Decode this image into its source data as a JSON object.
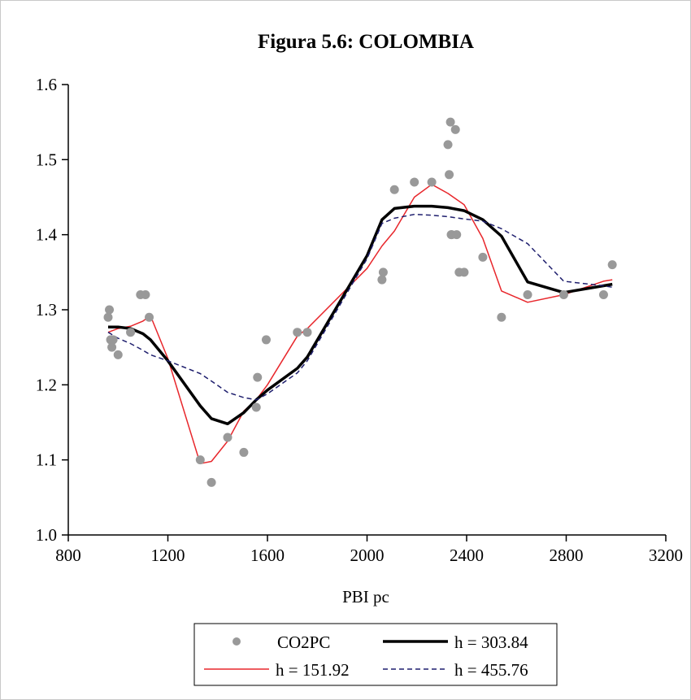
{
  "chart_data": {
    "type": "scatter",
    "title": "Figura 5.6: COLOMBIA",
    "xlabel": "PBI pc",
    "ylabel": "",
    "xlim": [
      800,
      3200
    ],
    "ylim": [
      1.0,
      1.6
    ],
    "xticks": [
      "800",
      "1200",
      "1600",
      "2000",
      "2400",
      "2800",
      "3200"
    ],
    "yticks": [
      "1.0",
      "1.1",
      "1.2",
      "1.3",
      "1.4",
      "1.5",
      "1.6"
    ],
    "grid": false,
    "legend_position": "bottom",
    "colors": {
      "points": "#999999",
      "h1": "#e8262b",
      "h2": "#000000",
      "h3": "#1f1f6e"
    },
    "points": {
      "name": "CO2PC",
      "x": [
        960,
        965,
        970,
        975,
        980,
        1000,
        1050,
        1090,
        1110,
        1125,
        1330,
        1375,
        1440,
        1505,
        1555,
        1560,
        1595,
        1720,
        1760,
        2060,
        2065,
        2110,
        2190,
        2260,
        2325,
        2330,
        2335,
        2338,
        2340,
        2355,
        2360,
        2370,
        2390,
        2465,
        2540,
        2645,
        2790,
        2950,
        2985
      ],
      "y": [
        1.29,
        1.3,
        1.26,
        1.25,
        1.26,
        1.24,
        1.27,
        1.32,
        1.32,
        1.29,
        1.1,
        1.07,
        1.13,
        1.11,
        1.17,
        1.21,
        1.26,
        1.27,
        1.27,
        1.34,
        1.35,
        1.46,
        1.47,
        1.47,
        1.52,
        1.48,
        1.55,
        1.4,
        1.4,
        1.54,
        1.4,
        1.35,
        1.35,
        1.37,
        1.29,
        1.32,
        1.32,
        1.32,
        1.36
      ]
    },
    "series": [
      {
        "name": "h = 151.92",
        "style": "solid-thin",
        "x": [
          960,
          1000,
          1050,
          1100,
          1130,
          1200,
          1330,
          1375,
          1440,
          1505,
          1555,
          1600,
          1720,
          1760,
          2000,
          2060,
          2110,
          2190,
          2260,
          2325,
          2390,
          2465,
          2540,
          2645,
          2790,
          2950,
          2985
        ],
        "y": [
          1.27,
          1.275,
          1.278,
          1.285,
          1.292,
          1.235,
          1.095,
          1.098,
          1.125,
          1.165,
          1.18,
          1.2,
          1.265,
          1.275,
          1.355,
          1.385,
          1.405,
          1.45,
          1.467,
          1.455,
          1.44,
          1.395,
          1.325,
          1.31,
          1.32,
          1.338,
          1.34
        ]
      },
      {
        "name": "h = 303.84",
        "style": "solid-thick",
        "x": [
          960,
          1000,
          1050,
          1100,
          1130,
          1200,
          1330,
          1375,
          1440,
          1505,
          1555,
          1600,
          1720,
          1760,
          2000,
          2060,
          2110,
          2190,
          2260,
          2325,
          2390,
          2465,
          2540,
          2645,
          2790,
          2950,
          2985
        ],
        "y": [
          1.277,
          1.277,
          1.275,
          1.268,
          1.26,
          1.232,
          1.172,
          1.155,
          1.148,
          1.163,
          1.18,
          1.193,
          1.222,
          1.237,
          1.372,
          1.42,
          1.435,
          1.438,
          1.438,
          1.436,
          1.432,
          1.42,
          1.398,
          1.337,
          1.323,
          1.332,
          1.334
        ]
      },
      {
        "name": "h = 455.76",
        "style": "dashed",
        "x": [
          960,
          1000,
          1050,
          1100,
          1130,
          1200,
          1330,
          1375,
          1440,
          1505,
          1555,
          1600,
          1720,
          1760,
          2000,
          2060,
          2110,
          2190,
          2260,
          2325,
          2390,
          2465,
          2540,
          2645,
          2790,
          2950,
          2985
        ],
        "y": [
          1.27,
          1.262,
          1.255,
          1.246,
          1.24,
          1.232,
          1.215,
          1.205,
          1.19,
          1.183,
          1.18,
          1.188,
          1.216,
          1.232,
          1.368,
          1.415,
          1.422,
          1.427,
          1.426,
          1.424,
          1.421,
          1.418,
          1.408,
          1.388,
          1.338,
          1.332,
          1.33
        ]
      }
    ]
  }
}
